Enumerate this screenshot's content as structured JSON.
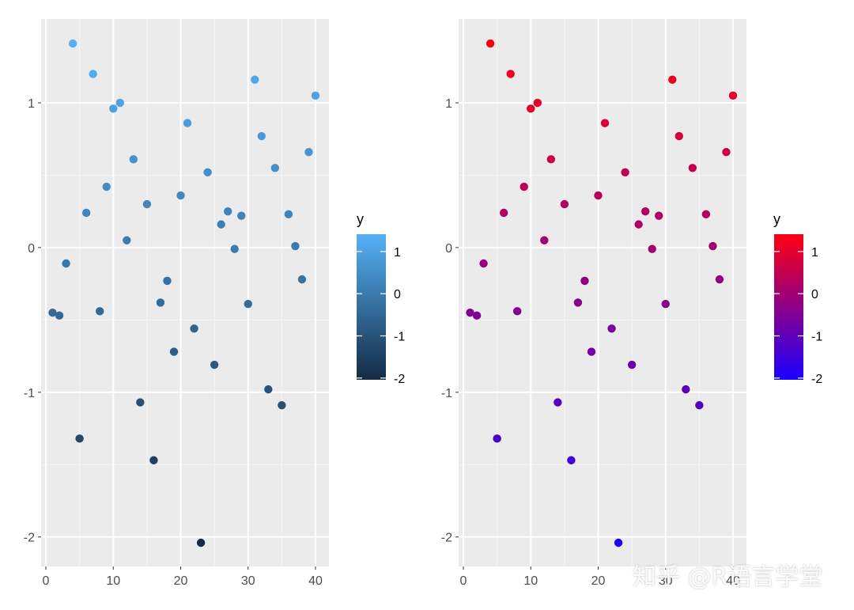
{
  "watermark": "知乎 @R语言学堂",
  "chart_data": [
    {
      "type": "scatter",
      "title": "",
      "xlabel": "",
      "ylabel": "",
      "xlim": [
        0,
        40
      ],
      "ylim": [
        -2.04,
        1.41
      ],
      "x_ticks": [
        "0",
        "10",
        "20",
        "30",
        "40"
      ],
      "y_ticks": [
        "-2",
        "-1",
        "0",
        "1"
      ],
      "grid": true,
      "legend": {
        "title": "y",
        "type": "colorbar",
        "position": "right",
        "low_color": "#132B43",
        "high_color": "#56B1F7",
        "labels": [
          "1",
          "0",
          "-1",
          "-2"
        ]
      },
      "series": [
        {
          "x": [
            1,
            2,
            3,
            4,
            5,
            6,
            7,
            8,
            9,
            10,
            11,
            12,
            13,
            14,
            15,
            16,
            17,
            18,
            19,
            20,
            21,
            22,
            23,
            24,
            25,
            26,
            27,
            28,
            29,
            30,
            31,
            32,
            33,
            34,
            35,
            36,
            37,
            38,
            39,
            40
          ],
          "y": [
            -0.45,
            -0.47,
            -0.11,
            1.41,
            -1.32,
            0.24,
            1.2,
            -0.44,
            0.42,
            0.96,
            1.0,
            0.05,
            0.61,
            -1.07,
            0.3,
            -1.47,
            -0.38,
            -0.23,
            -0.72,
            0.36,
            0.86,
            -0.56,
            -2.04,
            0.52,
            -0.81,
            0.16,
            0.25,
            -0.01,
            0.22,
            -0.39,
            1.16,
            0.77,
            -0.98,
            0.55,
            -1.09,
            0.23,
            0.01,
            -0.22,
            0.66,
            1.05
          ]
        }
      ]
    },
    {
      "type": "scatter",
      "title": "",
      "xlabel": "",
      "ylabel": "",
      "xlim": [
        0,
        40
      ],
      "ylim": [
        -2.04,
        1.41
      ],
      "x_ticks": [
        "0",
        "10",
        "20",
        "30",
        "40"
      ],
      "y_ticks": [
        "-2",
        "-1",
        "0",
        "1"
      ],
      "grid": true,
      "legend": {
        "title": "y",
        "type": "colorbar",
        "position": "right",
        "low_color": "#1A00FF",
        "high_color": "#FF0011",
        "labels": [
          "1",
          "0",
          "-1",
          "-2"
        ]
      },
      "series": [
        {
          "x": [
            1,
            2,
            3,
            4,
            5,
            6,
            7,
            8,
            9,
            10,
            11,
            12,
            13,
            14,
            15,
            16,
            17,
            18,
            19,
            20,
            21,
            22,
            23,
            24,
            25,
            26,
            27,
            28,
            29,
            30,
            31,
            32,
            33,
            34,
            35,
            36,
            37,
            38,
            39,
            40
          ],
          "y": [
            -0.45,
            -0.47,
            -0.11,
            1.41,
            -1.32,
            0.24,
            1.2,
            -0.44,
            0.42,
            0.96,
            1.0,
            0.05,
            0.61,
            -1.07,
            0.3,
            -1.47,
            -0.38,
            -0.23,
            -0.72,
            0.36,
            0.86,
            -0.56,
            -2.04,
            0.52,
            -0.81,
            0.16,
            0.25,
            -0.01,
            0.22,
            -0.39,
            1.16,
            0.77,
            -0.98,
            0.55,
            -1.09,
            0.23,
            0.01,
            -0.22,
            0.66,
            1.05
          ]
        }
      ]
    }
  ]
}
